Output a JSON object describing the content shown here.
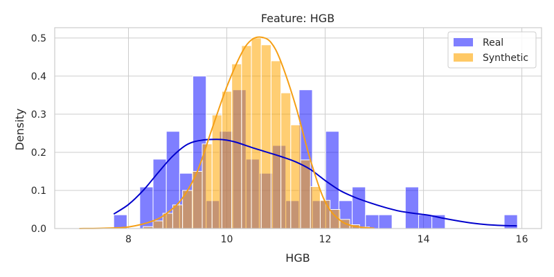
{
  "chart_data": {
    "type": "bar",
    "title": "Feature: HGB",
    "xlabel": "HGB",
    "ylabel": "Density",
    "xlim": [
      6.5,
      16.4
    ],
    "ylim": [
      0,
      0.527
    ],
    "xticks": [
      8,
      10,
      12,
      14,
      16
    ],
    "yticks": [
      0.0,
      0.1,
      0.2,
      0.3,
      0.4,
      0.5
    ],
    "grid": true,
    "legend": {
      "placement": "top-right",
      "entries": [
        "Real",
        "Synthetic"
      ]
    },
    "series": [
      {
        "name": "Real",
        "color": "#0000ff",
        "kde_color": "#0000cc",
        "bin_width": 0.27,
        "bins": [
          {
            "x0": 7.7,
            "value": 0.036
          },
          {
            "x0": 8.23,
            "value": 0.109
          },
          {
            "x0": 8.5,
            "value": 0.182
          },
          {
            "x0": 8.77,
            "value": 0.255
          },
          {
            "x0": 9.04,
            "value": 0.145
          },
          {
            "x0": 9.31,
            "value": 0.4
          },
          {
            "x0": 9.58,
            "value": 0.073
          },
          {
            "x0": 9.85,
            "value": 0.255
          },
          {
            "x0": 10.12,
            "value": 0.364
          },
          {
            "x0": 10.39,
            "value": 0.182
          },
          {
            "x0": 10.66,
            "value": 0.145
          },
          {
            "x0": 10.93,
            "value": 0.218
          },
          {
            "x0": 11.2,
            "value": 0.073
          },
          {
            "x0": 11.47,
            "value": 0.364
          },
          {
            "x0": 11.74,
            "value": 0.073
          },
          {
            "x0": 12.01,
            "value": 0.255
          },
          {
            "x0": 12.28,
            "value": 0.073
          },
          {
            "x0": 12.55,
            "value": 0.109
          },
          {
            "x0": 12.82,
            "value": 0.036
          },
          {
            "x0": 13.09,
            "value": 0.036
          },
          {
            "x0": 13.63,
            "value": 0.109
          },
          {
            "x0": 13.9,
            "value": 0.036
          },
          {
            "x0": 14.17,
            "value": 0.036
          },
          {
            "x0": 15.64,
            "value": 0.036
          }
        ],
        "kde": {
          "x": [
            7.7,
            8.0,
            8.3,
            8.6,
            8.9,
            9.2,
            9.5,
            9.8,
            10.0,
            10.2,
            10.5,
            10.8,
            11.1,
            11.4,
            11.7,
            12.0,
            12.3,
            12.6,
            12.9,
            13.2,
            13.5,
            13.8,
            14.1,
            14.4,
            14.7,
            15.0,
            15.3,
            15.6,
            15.9
          ],
          "y": [
            0.038,
            0.063,
            0.1,
            0.146,
            0.19,
            0.221,
            0.232,
            0.234,
            0.232,
            0.226,
            0.213,
            0.201,
            0.189,
            0.175,
            0.155,
            0.126,
            0.1,
            0.082,
            0.068,
            0.056,
            0.046,
            0.04,
            0.035,
            0.027,
            0.02,
            0.014,
            0.01,
            0.008,
            0.007
          ]
        }
      },
      {
        "name": "Synthetic",
        "color": "#ffa500",
        "kde_color": "#f59f15",
        "bin_width": 0.2,
        "bins": [
          {
            "x0": 8.3,
            "value": 0.005
          },
          {
            "x0": 8.5,
            "value": 0.02
          },
          {
            "x0": 8.7,
            "value": 0.04
          },
          {
            "x0": 8.9,
            "value": 0.062
          },
          {
            "x0": 9.1,
            "value": 0.1
          },
          {
            "x0": 9.3,
            "value": 0.15
          },
          {
            "x0": 9.5,
            "value": 0.222
          },
          {
            "x0": 9.7,
            "value": 0.298
          },
          {
            "x0": 9.9,
            "value": 0.36
          },
          {
            "x0": 10.1,
            "value": 0.432
          },
          {
            "x0": 10.3,
            "value": 0.48
          },
          {
            "x0": 10.5,
            "value": 0.5
          },
          {
            "x0": 10.7,
            "value": 0.482
          },
          {
            "x0": 10.9,
            "value": 0.44
          },
          {
            "x0": 11.1,
            "value": 0.356
          },
          {
            "x0": 11.3,
            "value": 0.272
          },
          {
            "x0": 11.5,
            "value": 0.18
          },
          {
            "x0": 11.7,
            "value": 0.11
          },
          {
            "x0": 11.9,
            "value": 0.074
          },
          {
            "x0": 12.1,
            "value": 0.05
          },
          {
            "x0": 12.3,
            "value": 0.024
          },
          {
            "x0": 12.5,
            "value": 0.01
          },
          {
            "x0": 12.7,
            "value": 0.004
          }
        ],
        "kde": {
          "x": [
            7.0,
            7.5,
            8.0,
            8.5,
            8.8,
            9.1,
            9.4,
            9.7,
            10.0,
            10.3,
            10.5,
            10.7,
            10.9,
            11.1,
            11.4,
            11.7,
            12.0,
            12.3,
            12.6,
            13.0
          ],
          "y": [
            0.0,
            0.001,
            0.004,
            0.02,
            0.042,
            0.08,
            0.15,
            0.262,
            0.372,
            0.46,
            0.495,
            0.502,
            0.488,
            0.438,
            0.322,
            0.18,
            0.07,
            0.022,
            0.006,
            0.001
          ]
        }
      }
    ]
  }
}
